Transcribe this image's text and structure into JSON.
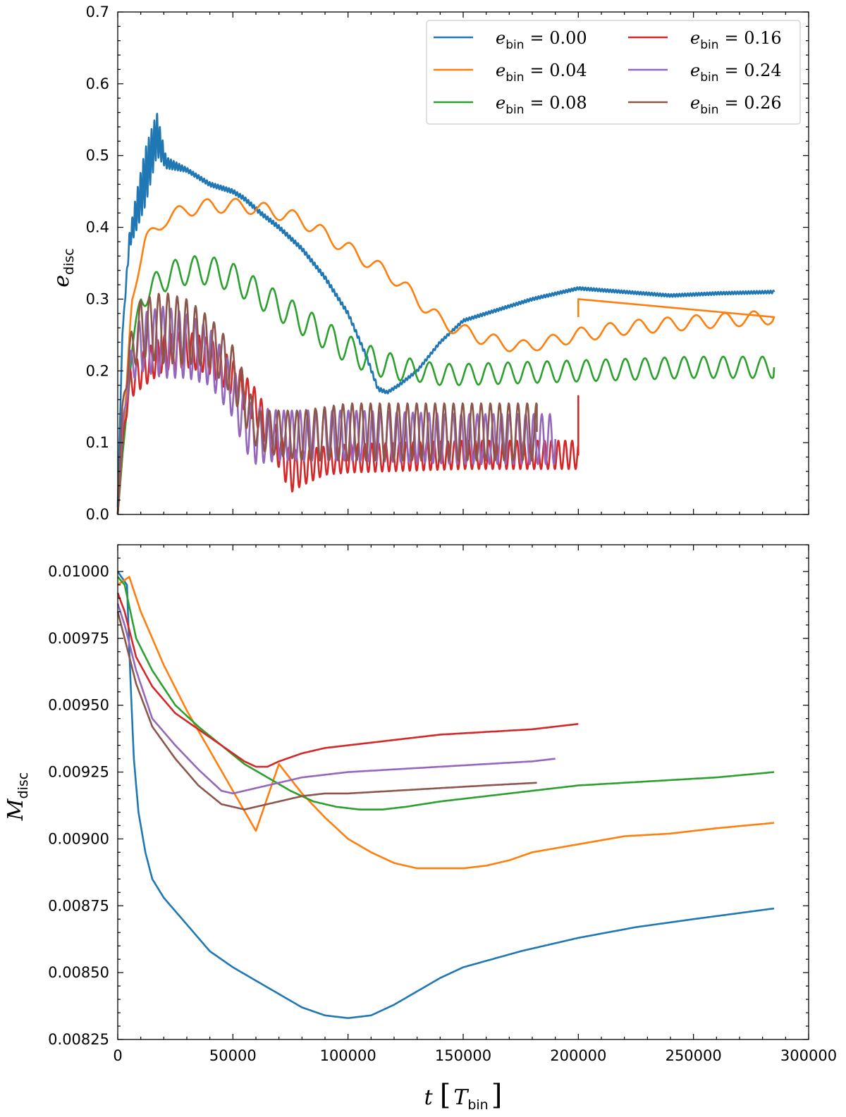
{
  "chart_data": [
    {
      "type": "line",
      "panel": "top",
      "ylabel_main": "e",
      "ylabel_sub": "disc",
      "xlabel": "",
      "xlim": [
        0,
        300000
      ],
      "ylim": [
        0.0,
        0.7
      ],
      "xticks": [
        0,
        50000,
        100000,
        150000,
        200000,
        250000,
        300000
      ],
      "yticks": [
        0.0,
        0.1,
        0.2,
        0.3,
        0.4,
        0.5,
        0.6,
        0.7
      ],
      "ytick_labels": [
        "0.0",
        "0.1",
        "0.2",
        "0.3",
        "0.4",
        "0.5",
        "0.6",
        "0.7"
      ],
      "legend": {
        "position": "top-right",
        "columns": 2
      },
      "series": [
        {
          "name": "e_bin = 0.00",
          "label_main": "e",
          "label_sub": "bin",
          "label_value": "= 0.00",
          "color": "#1f77b4",
          "x": [
            0,
            2000,
            5000,
            8000,
            12000,
            17000,
            21000,
            30000,
            40000,
            50000,
            55000,
            62000,
            70000,
            80000,
            90000,
            100000,
            108000,
            113000,
            117000,
            122000,
            130000,
            140000,
            150000,
            160000,
            180000,
            200000,
            220000,
            240000,
            260000,
            285000
          ],
          "y": [
            0.01,
            0.25,
            0.38,
            0.42,
            0.47,
            0.53,
            0.49,
            0.48,
            0.46,
            0.45,
            0.44,
            0.42,
            0.4,
            0.37,
            0.33,
            0.28,
            0.22,
            0.175,
            0.17,
            0.18,
            0.2,
            0.24,
            0.27,
            0.28,
            0.3,
            0.315,
            0.31,
            0.305,
            0.308,
            0.31
          ],
          "osc": [
            0,
            0,
            0.01,
            0.025,
            0.04,
            0.03,
            0.008,
            0.003,
            0.003,
            0.003,
            0.003,
            0.003,
            0.003,
            0.003,
            0.003,
            0.003,
            0.003,
            0.003,
            0.002,
            0.002,
            0.002,
            0.002,
            0.002,
            0.002,
            0.002,
            0.002,
            0.002,
            0.002,
            0.002,
            0.002
          ],
          "period": 1200
        },
        {
          "name": "e_bin = 0.04",
          "label_main": "e",
          "label_sub": "bin",
          "label_value": "= 0.04",
          "color": "#ff7f0e",
          "x": [
            0,
            2000,
            6000,
            12000,
            20000,
            30000,
            40000,
            55000,
            70000,
            80000,
            90000,
            100000,
            110000,
            120000,
            130000,
            140000,
            150000,
            160000,
            170000,
            180000,
            200000,
            220000,
            240000,
            260000,
            285000
          ],
          "y": [
            0.0,
            0.08,
            0.3,
            0.38,
            0.41,
            0.425,
            0.43,
            0.43,
            0.42,
            0.41,
            0.39,
            0.37,
            0.35,
            0.33,
            0.3,
            0.27,
            0.255,
            0.245,
            0.235,
            0.235,
            0.25,
            0.26,
            0.265,
            0.27,
            0.275
          ],
          "osc": [
            0,
            0,
            0.005,
            0.01,
            0.01,
            0.01,
            0.01,
            0.01,
            0.01,
            0.01,
            0.01,
            0.01,
            0.01,
            0.01,
            0.01,
            0.01,
            0.01,
            0.01,
            0.008,
            0.008,
            0.01,
            0.01,
            0.01,
            0.01,
            0.01
          ],
          "period": 12500,
          "spike": {
            "x": 200000,
            "y": 0.3
          }
        },
        {
          "name": "e_bin = 0.08",
          "label_main": "e",
          "label_sub": "bin",
          "label_value": "= 0.08",
          "color": "#2ca02c",
          "x": [
            0,
            2000,
            6000,
            10000,
            20000,
            30000,
            40000,
            50000,
            60000,
            70000,
            80000,
            90000,
            100000,
            110000,
            120000,
            130000,
            140000,
            150000,
            200000,
            250000,
            285000
          ],
          "y": [
            0.0,
            0.08,
            0.22,
            0.3,
            0.33,
            0.34,
            0.34,
            0.33,
            0.31,
            0.29,
            0.27,
            0.25,
            0.23,
            0.215,
            0.205,
            0.2,
            0.195,
            0.195,
            0.2,
            0.205,
            0.205
          ],
          "osc": [
            0,
            0,
            0.01,
            0.015,
            0.02,
            0.02,
            0.02,
            0.02,
            0.02,
            0.02,
            0.02,
            0.02,
            0.02,
            0.02,
            0.018,
            0.015,
            0.015,
            0.015,
            0.015,
            0.015,
            0.015
          ],
          "period": 8500
        },
        {
          "name": "e_bin = 0.16",
          "label_main": "e",
          "label_sub": "bin",
          "label_value": "= 0.16",
          "color": "#d62728",
          "x": [
            0,
            2000,
            5000,
            10000,
            20000,
            30000,
            40000,
            50000,
            60000,
            65000,
            70000,
            75000,
            80000,
            90000,
            100000,
            120000,
            150000,
            180000,
            200000
          ],
          "y": [
            0.0,
            0.1,
            0.18,
            0.2,
            0.225,
            0.23,
            0.22,
            0.19,
            0.15,
            0.12,
            0.09,
            0.06,
            0.065,
            0.075,
            0.078,
            0.08,
            0.083,
            0.083,
            0.083
          ],
          "osc": [
            0,
            0,
            0.02,
            0.025,
            0.025,
            0.025,
            0.025,
            0.025,
            0.025,
            0.025,
            0.025,
            0.03,
            0.025,
            0.02,
            0.02,
            0.02,
            0.02,
            0.02,
            0.02
          ],
          "period": 3000,
          "spike": {
            "x": 200000,
            "y": 0.165
          }
        },
        {
          "name": "e_bin = 0.24",
          "label_main": "e",
          "label_sub": "bin",
          "label_value": "= 0.24",
          "color": "#9467bd",
          "x": [
            0,
            2000,
            5000,
            10000,
            20000,
            30000,
            40000,
            50000,
            55000,
            60000,
            70000,
            100000,
            150000,
            190000
          ],
          "y": [
            0.0,
            0.12,
            0.2,
            0.24,
            0.24,
            0.235,
            0.22,
            0.17,
            0.13,
            0.11,
            0.11,
            0.11,
            0.105,
            0.105
          ],
          "osc": [
            0,
            0,
            0.02,
            0.04,
            0.05,
            0.045,
            0.04,
            0.035,
            0.04,
            0.04,
            0.035,
            0.035,
            0.035,
            0.035
          ],
          "period": 3500
        },
        {
          "name": "e_bin = 0.26",
          "label_main": "e",
          "label_sub": "bin",
          "label_value": "= 0.26",
          "color": "#8c564b",
          "x": [
            0,
            2000,
            5000,
            10000,
            20000,
            30000,
            40000,
            50000,
            55000,
            60000,
            65000,
            80000,
            100000,
            120000,
            150000,
            182000
          ],
          "y": [
            0.0,
            0.15,
            0.22,
            0.26,
            0.26,
            0.255,
            0.24,
            0.2,
            0.16,
            0.12,
            0.115,
            0.11,
            0.115,
            0.115,
            0.115,
            0.115
          ],
          "osc": [
            0,
            0,
            0.025,
            0.04,
            0.05,
            0.045,
            0.035,
            0.035,
            0.035,
            0.025,
            0.03,
            0.035,
            0.04,
            0.04,
            0.04,
            0.04
          ],
          "period": 4000
        }
      ]
    },
    {
      "type": "line",
      "panel": "bottom",
      "ylabel_main": "M",
      "ylabel_sub": "disc",
      "xlabel_main": "t",
      "xlabel_unit_main": "T",
      "xlabel_unit_sub": "bin",
      "xlim": [
        0,
        300000
      ],
      "ylim": [
        0.00825,
        0.0101
      ],
      "xticks": [
        0,
        50000,
        100000,
        150000,
        200000,
        250000,
        300000
      ],
      "xtick_labels": [
        "0",
        "50000",
        "100000",
        "150000",
        "200000",
        "250000",
        "300000"
      ],
      "yticks": [
        0.00825,
        0.0085,
        0.00875,
        0.009,
        0.00925,
        0.0095,
        0.00975,
        0.01
      ],
      "ytick_labels": [
        "0.00825",
        "0.00850",
        "0.00875",
        "0.00900",
        "0.00925",
        "0.00950",
        "0.00975",
        "0.01000"
      ],
      "series": [
        {
          "name": "e_bin = 0.00",
          "color": "#1f77b4",
          "x": [
            0,
            4000,
            5500,
            7000,
            9000,
            12000,
            15000,
            20000,
            25000,
            30000,
            40000,
            50000,
            60000,
            70000,
            80000,
            90000,
            100000,
            110000,
            120000,
            130000,
            140000,
            150000,
            175000,
            200000,
            225000,
            250000,
            285000
          ],
          "y": [
            0.01,
            0.00995,
            0.0096,
            0.0093,
            0.0091,
            0.00895,
            0.00885,
            0.00878,
            0.00873,
            0.00868,
            0.00858,
            0.00852,
            0.00847,
            0.00842,
            0.00837,
            0.00834,
            0.00833,
            0.00834,
            0.00838,
            0.00843,
            0.00848,
            0.00852,
            0.00858,
            0.00863,
            0.00867,
            0.0087,
            0.00874
          ]
        },
        {
          "name": "e_bin = 0.04",
          "color": "#ff7f0e",
          "x": [
            0,
            5000,
            10000,
            20000,
            30000,
            40000,
            50000,
            60000,
            70000,
            80000,
            90000,
            100000,
            110000,
            120000,
            130000,
            140000,
            150000,
            160000,
            170000,
            180000,
            200000,
            220000,
            240000,
            260000,
            285000
          ],
          "y": [
            0.00995,
            0.00998,
            0.00985,
            0.00965,
            0.00948,
            0.00933,
            0.00918,
            0.00903,
            0.00928,
            0.00917,
            0.00908,
            0.009,
            0.00895,
            0.00891,
            0.00889,
            0.00889,
            0.00889,
            0.0089,
            0.00892,
            0.00895,
            0.00898,
            0.00901,
            0.00902,
            0.00904,
            0.00906
          ]
        },
        {
          "name": "e_bin = 0.08",
          "color": "#2ca02c",
          "x": [
            0,
            3000,
            8000,
            15000,
            25000,
            35000,
            45000,
            55000,
            65000,
            75000,
            85000,
            95000,
            105000,
            115000,
            125000,
            140000,
            160000,
            180000,
            200000,
            220000,
            240000,
            260000,
            285000
          ],
          "y": [
            0.00998,
            0.00995,
            0.00975,
            0.00963,
            0.0095,
            0.00942,
            0.00935,
            0.00928,
            0.00923,
            0.00918,
            0.00914,
            0.00912,
            0.00911,
            0.00911,
            0.00912,
            0.00914,
            0.00916,
            0.00918,
            0.0092,
            0.00921,
            0.00922,
            0.00923,
            0.00925
          ]
        },
        {
          "name": "e_bin = 0.16",
          "color": "#d62728",
          "x": [
            0,
            3000,
            8000,
            15000,
            25000,
            35000,
            45000,
            55000,
            60000,
            65000,
            70000,
            80000,
            90000,
            100000,
            120000,
            140000,
            160000,
            180000,
            200000
          ],
          "y": [
            0.00992,
            0.00985,
            0.00968,
            0.00957,
            0.00947,
            0.00941,
            0.00935,
            0.00929,
            0.00927,
            0.00927,
            0.00929,
            0.00932,
            0.00934,
            0.00935,
            0.00937,
            0.00939,
            0.0094,
            0.00941,
            0.00943
          ]
        },
        {
          "name": "e_bin = 0.24",
          "color": "#9467bd",
          "x": [
            0,
            3000,
            8000,
            15000,
            25000,
            35000,
            45000,
            50000,
            55000,
            60000,
            70000,
            80000,
            90000,
            100000,
            120000,
            140000,
            160000,
            180000,
            190000
          ],
          "y": [
            0.00988,
            0.0098,
            0.00963,
            0.00945,
            0.00935,
            0.00926,
            0.00918,
            0.00917,
            0.00918,
            0.00919,
            0.00921,
            0.00923,
            0.00924,
            0.00925,
            0.00926,
            0.00927,
            0.00928,
            0.00929,
            0.0093
          ]
        },
        {
          "name": "e_bin = 0.26",
          "color": "#8c564b",
          "x": [
            0,
            3000,
            8000,
            15000,
            25000,
            35000,
            45000,
            50000,
            55000,
            60000,
            70000,
            80000,
            90000,
            100000,
            120000,
            140000,
            160000,
            182000
          ],
          "y": [
            0.00985,
            0.00975,
            0.00958,
            0.00942,
            0.0093,
            0.0092,
            0.00913,
            0.00912,
            0.00911,
            0.00912,
            0.00914,
            0.00916,
            0.00917,
            0.00917,
            0.00918,
            0.00919,
            0.0092,
            0.00921
          ]
        }
      ]
    }
  ]
}
